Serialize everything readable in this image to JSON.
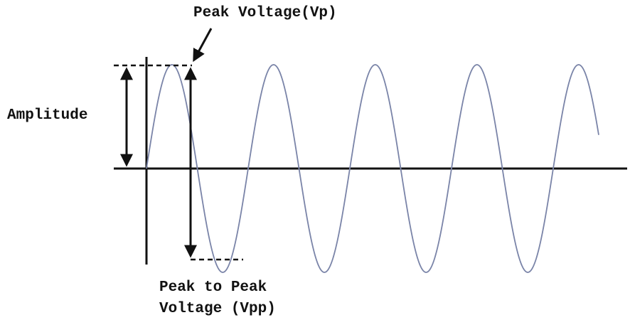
{
  "diagram": {
    "labels": {
      "peak_voltage": "Peak Voltage(Vp)",
      "amplitude": "Amplitude",
      "peak_to_peak_line1": "Peak to Peak",
      "peak_to_peak_line2": "Voltage (Vpp)"
    },
    "colors": {
      "wave": "#7a84a8",
      "axis": "#111111",
      "text": "#111111",
      "background": "#ffffff"
    }
  }
}
